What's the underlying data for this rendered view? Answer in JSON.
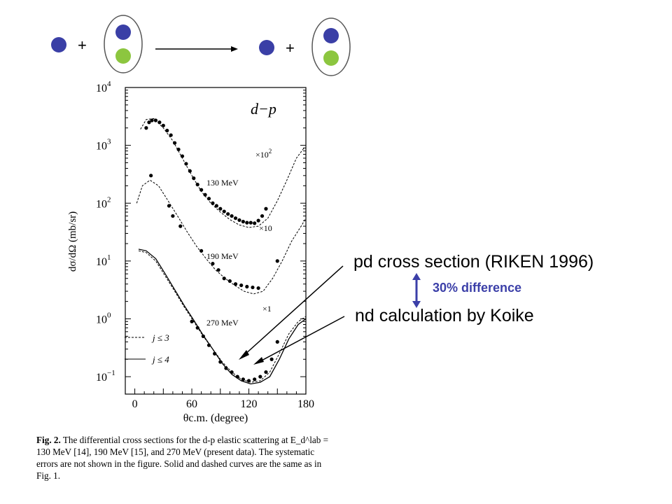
{
  "reaction": {
    "plus_left": "+",
    "plus_right": "+",
    "colors": {
      "nucleon": "#3a3fa6",
      "neutron": "#8cc63f",
      "outline": "#555555"
    }
  },
  "annotations": {
    "pd_label": "pd cross section (RIKEN 1996)",
    "nd_label": "nd calculation by Koike",
    "difference": "30% difference",
    "difference_color": "#3b3fa8"
  },
  "chart_data": {
    "type": "scatter",
    "title": "d−p",
    "xlabel": "θc.m. (degree)",
    "ylabel": "dσ/dΩ (mb/sr)",
    "xlim": [
      -10,
      180
    ],
    "ylim": [
      0.05,
      10000
    ],
    "y_scale": "log",
    "x_ticks": [
      "0",
      "60",
      "120",
      "180"
    ],
    "y_ticks": [
      "10^-1",
      "10^0",
      "10^1",
      "10^2",
      "10^3",
      "10^4"
    ],
    "legend": [
      {
        "label": "j ≤ 3",
        "style": "dashed"
      },
      {
        "label": "j ≤ 4",
        "style": "solid"
      }
    ],
    "legend_position": "bottom-left",
    "series": [
      {
        "name": "130 MeV",
        "scale": "×10^2",
        "points": [
          [
            12,
            2000
          ],
          [
            15,
            2500
          ],
          [
            18,
            2700
          ],
          [
            22,
            2700
          ],
          [
            26,
            2500
          ],
          [
            30,
            2200
          ],
          [
            34,
            1800
          ],
          [
            38,
            1500
          ],
          [
            42,
            1100
          ],
          [
            46,
            850
          ],
          [
            50,
            650
          ],
          [
            54,
            480
          ],
          [
            58,
            360
          ],
          [
            62,
            270
          ],
          [
            66,
            210
          ],
          [
            70,
            170
          ],
          [
            74,
            140
          ],
          [
            78,
            120
          ],
          [
            82,
            100
          ],
          [
            86,
            90
          ],
          [
            90,
            80
          ],
          [
            94,
            72
          ],
          [
            98,
            65
          ],
          [
            102,
            60
          ],
          [
            106,
            55
          ],
          [
            110,
            51
          ],
          [
            114,
            48
          ],
          [
            118,
            46
          ],
          [
            122,
            46
          ],
          [
            126,
            45
          ],
          [
            130,
            50
          ],
          [
            134,
            60
          ],
          [
            138,
            80
          ]
        ],
        "dashed": [
          [
            6,
            1900
          ],
          [
            12,
            2800
          ],
          [
            20,
            2900
          ],
          [
            30,
            2000
          ],
          [
            40,
            1200
          ],
          [
            50,
            600
          ],
          [
            60,
            300
          ],
          [
            70,
            160
          ],
          [
            80,
            100
          ],
          [
            90,
            70
          ],
          [
            100,
            52
          ],
          [
            110,
            42
          ],
          [
            120,
            38
          ],
          [
            130,
            40
          ],
          [
            140,
            55
          ],
          [
            150,
            110
          ],
          [
            160,
            250
          ],
          [
            170,
            600
          ],
          [
            178,
            900
          ]
        ]
      },
      {
        "name": "190 MeV",
        "scale": "×10",
        "points": [
          [
            17,
            300
          ],
          [
            36,
            90
          ],
          [
            40,
            60
          ],
          [
            48,
            40
          ],
          [
            70,
            15
          ],
          [
            82,
            9
          ],
          [
            88,
            7
          ],
          [
            94,
            5
          ],
          [
            100,
            4.5
          ],
          [
            106,
            4
          ],
          [
            112,
            3.8
          ],
          [
            118,
            3.6
          ],
          [
            124,
            3.5
          ],
          [
            130,
            3.4
          ],
          [
            150,
            10
          ]
        ],
        "dashed": [
          [
            2,
            100
          ],
          [
            8,
            200
          ],
          [
            16,
            250
          ],
          [
            25,
            200
          ],
          [
            35,
            110
          ],
          [
            45,
            60
          ],
          [
            55,
            32
          ],
          [
            65,
            18
          ],
          [
            75,
            11
          ],
          [
            85,
            7
          ],
          [
            95,
            5
          ],
          [
            105,
            3.8
          ],
          [
            115,
            3.0
          ],
          [
            125,
            2.7
          ],
          [
            135,
            3
          ],
          [
            145,
            5
          ],
          [
            155,
            10
          ],
          [
            165,
            22
          ],
          [
            175,
            40
          ],
          [
            180,
            55
          ]
        ]
      },
      {
        "name": "270 MeV",
        "scale": "×1",
        "points": [
          [
            60,
            0.9
          ],
          [
            66,
            0.7
          ],
          [
            72,
            0.5
          ],
          [
            78,
            0.35
          ],
          [
            84,
            0.25
          ],
          [
            90,
            0.18
          ],
          [
            96,
            0.14
          ],
          [
            102,
            0.12
          ],
          [
            108,
            0.1
          ],
          [
            114,
            0.09
          ],
          [
            120,
            0.085
          ],
          [
            126,
            0.09
          ],
          [
            132,
            0.1
          ],
          [
            138,
            0.12
          ],
          [
            144,
            0.2
          ],
          [
            150,
            0.4
          ]
        ],
        "dashed": [
          [
            4,
            15
          ],
          [
            12,
            14
          ],
          [
            22,
            10
          ],
          [
            32,
            5.5
          ],
          [
            42,
            3
          ],
          [
            52,
            1.6
          ],
          [
            62,
            0.9
          ],
          [
            72,
            0.5
          ],
          [
            82,
            0.3
          ],
          [
            92,
            0.18
          ],
          [
            102,
            0.12
          ],
          [
            112,
            0.09
          ],
          [
            122,
            0.08
          ],
          [
            132,
            0.085
          ],
          [
            142,
            0.12
          ],
          [
            152,
            0.25
          ],
          [
            162,
            0.55
          ],
          [
            172,
            0.9
          ],
          [
            180,
            1.1
          ]
        ],
        "solid": [
          [
            4,
            16
          ],
          [
            12,
            15
          ],
          [
            22,
            11
          ],
          [
            32,
            6
          ],
          [
            42,
            3.2
          ],
          [
            52,
            1.7
          ],
          [
            62,
            0.95
          ],
          [
            72,
            0.52
          ],
          [
            82,
            0.3
          ],
          [
            92,
            0.17
          ],
          [
            102,
            0.11
          ],
          [
            112,
            0.085
          ],
          [
            122,
            0.075
          ],
          [
            132,
            0.08
          ],
          [
            142,
            0.1
          ],
          [
            152,
            0.2
          ],
          [
            162,
            0.45
          ],
          [
            172,
            0.8
          ],
          [
            180,
            1.0
          ]
        ]
      }
    ]
  },
  "caption": {
    "fig": "Fig. 2.",
    "text": "The differential cross sections for the d-p elastic scattering at E_d^lab = 130 MeV [14], 190 MeV [15], and 270 MeV (present data). The systematic errors are not shown in the figure. Solid and dashed curves are the same as in Fig. 1."
  }
}
